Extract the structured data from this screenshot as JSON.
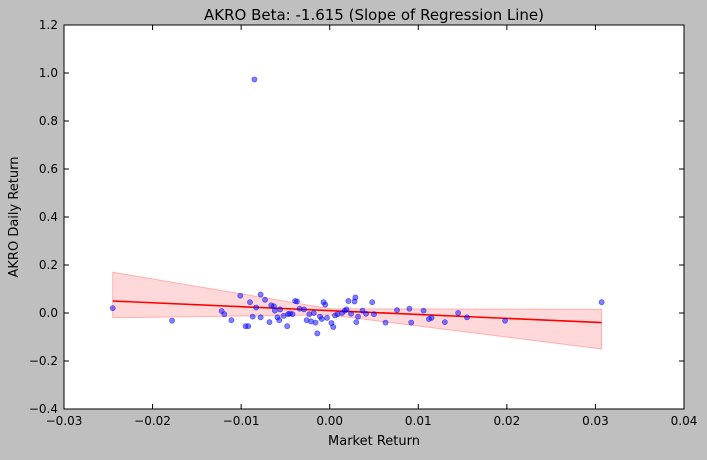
{
  "chart_data": {
    "type": "scatter",
    "title": "AKRO Beta: -1.615 (Slope of Regression Line)",
    "xlabel": "Market Return",
    "ylabel": "AKRO Daily Return",
    "xlim": [
      -0.03,
      0.04
    ],
    "ylim": [
      -0.4,
      1.2
    ],
    "xticks": [
      -0.03,
      -0.02,
      -0.01,
      0.0,
      0.01,
      0.02,
      0.03,
      0.04
    ],
    "xtick_labels": [
      "−0.03",
      "−0.02",
      "−0.01",
      "0.00",
      "0.01",
      "0.02",
      "0.03",
      "0.04"
    ],
    "yticks": [
      -0.4,
      -0.2,
      0.0,
      0.2,
      0.4,
      0.6,
      0.8,
      1.0,
      1.2
    ],
    "ytick_labels": [
      "−0.4",
      "−0.2",
      "0.0",
      "0.2",
      "0.4",
      "0.6",
      "0.8",
      "1.0",
      "1.2"
    ],
    "grid": false,
    "colors": {
      "points": "#0000ff",
      "regression_line": "#ff0000",
      "confidence_band": "#ff0000",
      "figure_background": "#bfbfbf",
      "plot_background": "#ffffff"
    },
    "points": [
      [
        -0.0245,
        0.02
      ],
      [
        -0.0178,
        -0.032
      ],
      [
        -0.0122,
        0.008
      ],
      [
        -0.0119,
        -0.005
      ],
      [
        -0.0111,
        -0.03
      ],
      [
        -0.0101,
        0.072
      ],
      [
        -0.0095,
        -0.055
      ],
      [
        -0.0092,
        -0.055
      ],
      [
        -0.009,
        0.045
      ],
      [
        -0.0087,
        -0.015
      ],
      [
        -0.0085,
        0.973
      ],
      [
        -0.0083,
        0.023
      ],
      [
        -0.0078,
        0.077
      ],
      [
        -0.0078,
        -0.018
      ],
      [
        -0.0073,
        0.055
      ],
      [
        -0.0068,
        -0.038
      ],
      [
        -0.0066,
        0.032
      ],
      [
        -0.0063,
        0.028
      ],
      [
        -0.0062,
        0.01
      ],
      [
        -0.0059,
        -0.018
      ],
      [
        -0.0057,
        -0.03
      ],
      [
        -0.0056,
        0.015
      ],
      [
        -0.0052,
        -0.012
      ],
      [
        -0.0048,
        -0.055
      ],
      [
        -0.0047,
        -0.005
      ],
      [
        -0.0045,
        -0.002
      ],
      [
        -0.0042,
        -0.005
      ],
      [
        -0.0039,
        0.05
      ],
      [
        -0.0037,
        0.048
      ],
      [
        -0.0034,
        0.018
      ],
      [
        -0.0029,
        0.015
      ],
      [
        -0.0026,
        -0.03
      ],
      [
        -0.0023,
        -0.005
      ],
      [
        -0.0021,
        -0.035
      ],
      [
        -0.0018,
        0.0
      ],
      [
        -0.0016,
        -0.04
      ],
      [
        -0.0014,
        -0.085
      ],
      [
        -0.0011,
        -0.015
      ],
      [
        -0.0009,
        -0.025
      ],
      [
        -0.0007,
        0.045
      ],
      [
        -0.0005,
        0.035
      ],
      [
        -0.0003,
        -0.02
      ],
      [
        0.0002,
        -0.042
      ],
      [
        0.0004,
        -0.058
      ],
      [
        0.0006,
        -0.01
      ],
      [
        0.0009,
        -0.005
      ],
      [
        0.0014,
        0.0
      ],
      [
        0.0017,
        0.01
      ],
      [
        0.0019,
        0.015
      ],
      [
        0.0021,
        0.05
      ],
      [
        0.0024,
        -0.003
      ],
      [
        0.0028,
        0.048
      ],
      [
        0.0029,
        0.065
      ],
      [
        0.003,
        -0.038
      ],
      [
        0.0032,
        -0.015
      ],
      [
        0.0037,
        0.01
      ],
      [
        0.0041,
        -0.003
      ],
      [
        0.0048,
        0.045
      ],
      [
        0.005,
        -0.005
      ],
      [
        0.0063,
        -0.04
      ],
      [
        0.0076,
        0.012
      ],
      [
        0.009,
        0.018
      ],
      [
        0.0092,
        -0.04
      ],
      [
        0.0106,
        0.01
      ],
      [
        0.0112,
        -0.025
      ],
      [
        0.0115,
        -0.02
      ],
      [
        0.013,
        -0.038
      ],
      [
        0.0145,
        0.0
      ],
      [
        0.0155,
        -0.018
      ],
      [
        0.0198,
        -0.032
      ],
      [
        0.0307,
        0.045
      ]
    ],
    "regression": {
      "x": [
        -0.0245,
        0.0307
      ],
      "y": [
        0.05,
        -0.04
      ]
    },
    "confidence_band": {
      "x": [
        -0.0245,
        0.0,
        0.0307
      ],
      "upper": [
        0.17,
        0.018,
        0.015
      ],
      "lower": [
        -0.02,
        -0.008,
        -0.15
      ]
    }
  }
}
